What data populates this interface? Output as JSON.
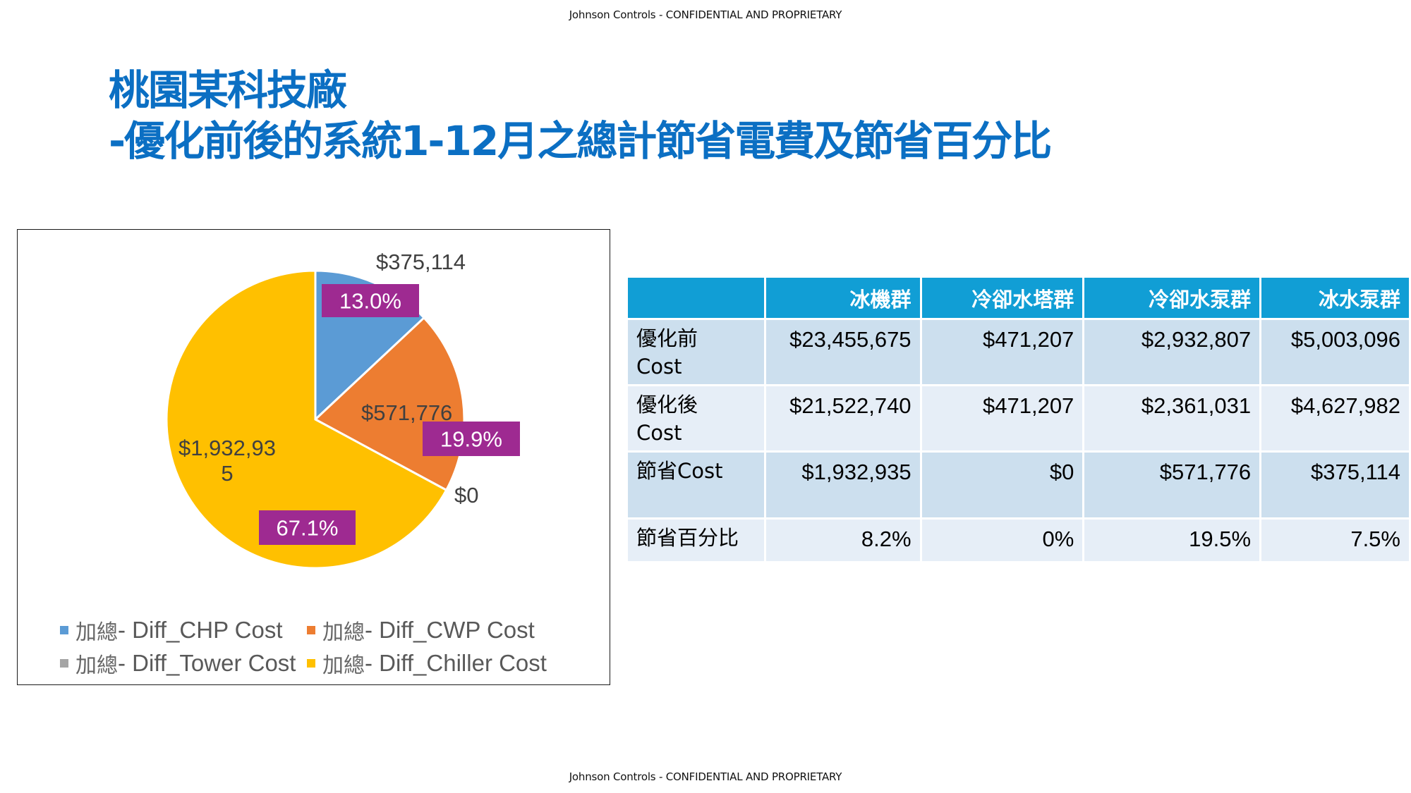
{
  "header": {
    "confidential": "Johnson Controls - CONFIDENTIAL AND PROPRIETARY"
  },
  "footer": {
    "confidential": "Johnson Controls - CONFIDENTIAL AND PROPRIETARY"
  },
  "title": {
    "line1": "桃園某科技廠",
    "line2": "-優化前後的系統1-12月之總計節省電費及節省百分比"
  },
  "colors": {
    "title": "#0B6FC3",
    "chp": "#5B9BD5",
    "cwp": "#ED7D31",
    "tower": "#A5A5A5",
    "chiller": "#FFC000",
    "percent_label_bg": "#9E2A91",
    "table_header": "#119ED5",
    "row_dark": "#CCDFEE",
    "row_light": "#E6EEF7"
  },
  "chart_data": {
    "type": "pie",
    "title": "",
    "start_angle": "12 o'clock, clockwise",
    "legend_position": "bottom",
    "series": [
      {
        "name": "加總 - Diff_CHP Cost",
        "value": 375114,
        "value_label": "$375,114",
        "percent_label": "13.0%",
        "color": "#5B9BD5"
      },
      {
        "name": "加總 - Diff_CWP Cost",
        "value": 571776,
        "value_label": "$571,776",
        "percent_label": "19.9%",
        "color": "#ED7D31"
      },
      {
        "name": "加總 - Diff_Tower Cost",
        "value": 0,
        "value_label": "$0",
        "percent_label": "",
        "color": "#A5A5A5"
      },
      {
        "name": "加總 - Diff_Chiller Cost",
        "value": 1932935,
        "value_label_line1": "$1,932,93",
        "value_label_line2": "5",
        "value_label": "$1,932,935",
        "percent_label": "67.1%",
        "color": "#FFC000"
      }
    ]
  },
  "legend": {
    "items": [
      {
        "prefix": "加總",
        "label": " - Diff_CHP Cost"
      },
      {
        "prefix": "加總",
        "label": " - Diff_CWP Cost"
      },
      {
        "prefix": "加總",
        "label": " - Diff_Tower Cost"
      },
      {
        "prefix": "加總",
        "label": " - Diff_Chiller Cost"
      }
    ]
  },
  "table": {
    "headers": [
      "",
      "冰機群",
      "冷卻水塔群",
      "冷卻水泵群",
      "冰水泵群"
    ],
    "rows": [
      {
        "label_line1": "優化前",
        "label_line2": "Cost",
        "values": [
          "$23,455,675",
          "$471,207",
          "$2,932,807",
          "$5,003,096"
        ]
      },
      {
        "label_line1": "優化後",
        "label_line2": "Cost",
        "values": [
          "$21,522,740",
          "$471,207",
          "$2,361,031",
          "$4,627,982"
        ]
      },
      {
        "label_line1": "節省Cost",
        "label_line2": "",
        "values": [
          "$1,932,935",
          "$0",
          "$571,776",
          "$375,114"
        ]
      },
      {
        "label_line1": "節省百分比",
        "label_line2": "",
        "values": [
          "8.2%",
          "0%",
          "19.5%",
          "7.5%"
        ]
      }
    ]
  }
}
